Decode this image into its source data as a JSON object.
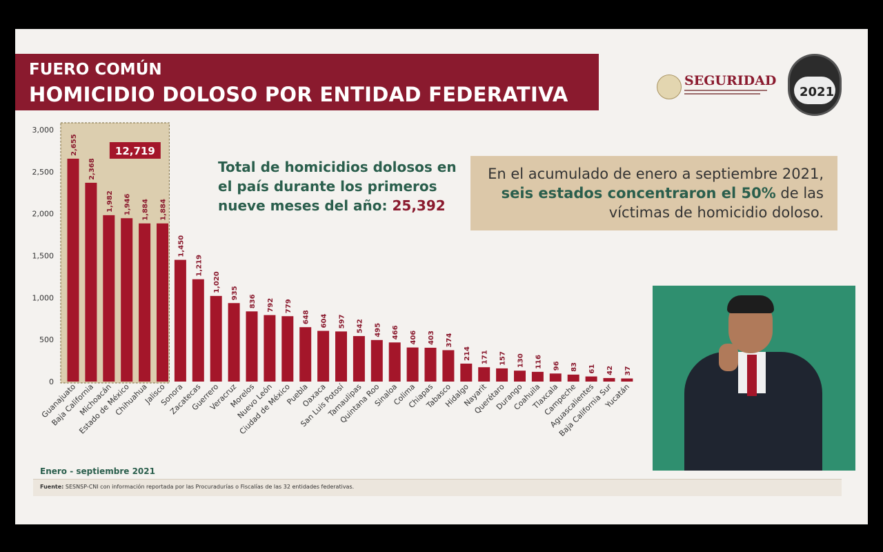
{
  "header": {
    "line1": "FUERO COMÚN",
    "line2": "HOMICIDIO DOLOSO POR ENTIDAD FEDERATIVA"
  },
  "logos": {
    "seguridad": "SEGURIDAD",
    "badge_year": "2021"
  },
  "total": {
    "text": "Total de homicidios dolosos en el país durante los primeros nueve meses del año: ",
    "value": "25,392"
  },
  "note": {
    "part1": "En el acumulado de enero a septiembre 2021, ",
    "highlight": "seis estados concentraron el 50%",
    "part2": " de las víctimas de homicidio doloso."
  },
  "period": "Enero - septiembre 2021",
  "source": {
    "label": "Fuente:",
    "text": " SESNSP-CNI con información reportada por las Procuradurías o Fiscalías de las 32 entidades federativas."
  },
  "colors": {
    "bar": "#a4162a",
    "accent_green": "#2a5e4c",
    "highlight_box": "#c9b07a"
  },
  "chart_data": {
    "type": "bar",
    "categories": [
      "Guanajuato",
      "Baja California",
      "Michoacán",
      "Estado de México",
      "Chihuahua",
      "Jalisco",
      "Sonora",
      "Zacatecas",
      "Guerrero",
      "Veracruz",
      "Morelos",
      "Nuevo León",
      "Ciudad de México",
      "Puebla",
      "Oaxaca",
      "San Luis Potosí",
      "Tamaulipas",
      "Quintana Roo",
      "Sinaloa",
      "Colima",
      "Chiapas",
      "Tabasco",
      "Hidalgo",
      "Nayarit",
      "Querétaro",
      "Durango",
      "Coahuila",
      "Tlaxcala",
      "Campeche",
      "Aguascalientes",
      "Baja California Sur",
      "Yucatán"
    ],
    "values": [
      2655,
      2368,
      1982,
      1946,
      1884,
      1884,
      1450,
      1219,
      1020,
      935,
      836,
      792,
      779,
      648,
      604,
      597,
      542,
      495,
      466,
      406,
      403,
      374,
      214,
      171,
      157,
      130,
      116,
      96,
      83,
      61,
      42,
      37
    ],
    "value_labels": [
      "2,655",
      "2,368",
      "1,982",
      "1,946",
      "1,884",
      "1,884",
      "1,450",
      "1,219",
      "1,020",
      "935",
      "836",
      "792",
      "779",
      "648",
      "604",
      "597",
      "542",
      "495",
      "466",
      "406",
      "403",
      "374",
      "214",
      "171",
      "157",
      "130",
      "116",
      "96",
      "83",
      "61",
      "42",
      "37"
    ],
    "yticks": [
      0,
      500,
      1000,
      1500,
      2000,
      2500,
      3000
    ],
    "ytick_labels": [
      "0",
      "500",
      "1,000",
      "1,500",
      "2,000",
      "2,500",
      "3,000"
    ],
    "ylim": [
      0,
      3000
    ],
    "highlight": {
      "first_n": 6,
      "label": "12,719"
    },
    "grid": false,
    "legend": "none"
  }
}
